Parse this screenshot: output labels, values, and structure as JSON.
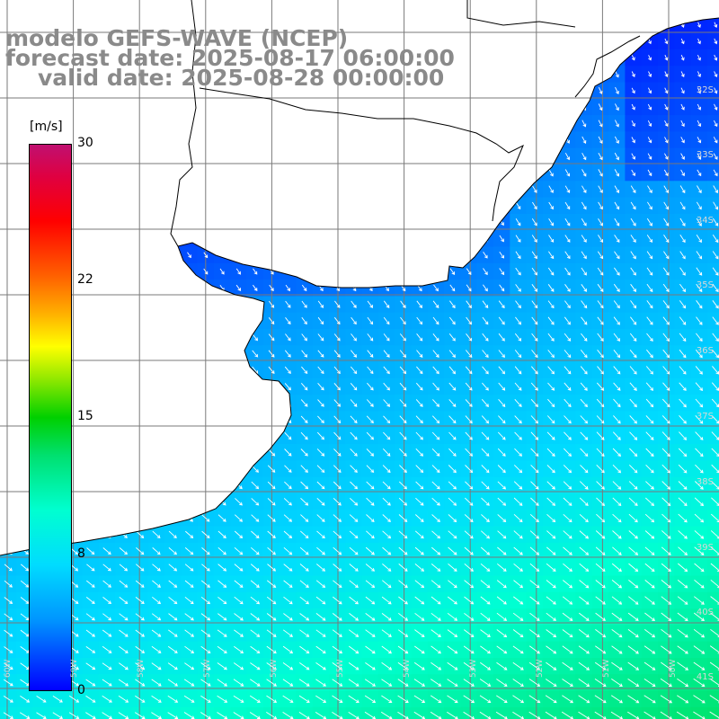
{
  "title": {
    "model": "modelo GEFS-WAVE (NCEP)",
    "forecast": "forecast date: 2025-08-17 06:00:00",
    "valid": "valid date: 2025-08-28 00:00:00"
  },
  "colorbar": {
    "unit": "[m/s]",
    "ticks": [
      "30",
      "22",
      "15",
      "8",
      "0"
    ],
    "colors": [
      "#0000ff",
      "#0096ff",
      "#00dcff",
      "#00ffd0",
      "#00d000",
      "#ffff00",
      "#ff6000",
      "#ff0000",
      "#c01070"
    ]
  },
  "grid": {
    "lat_labels": [
      "32S",
      "33S",
      "34S",
      "35S",
      "36S",
      "37S",
      "38S",
      "39S",
      "40S",
      "41S"
    ],
    "lon_labels": [
      "60W",
      "59W",
      "58W",
      "57W",
      "56W",
      "55W",
      "54W",
      "53W",
      "52W",
      "51W",
      "50W"
    ]
  }
}
